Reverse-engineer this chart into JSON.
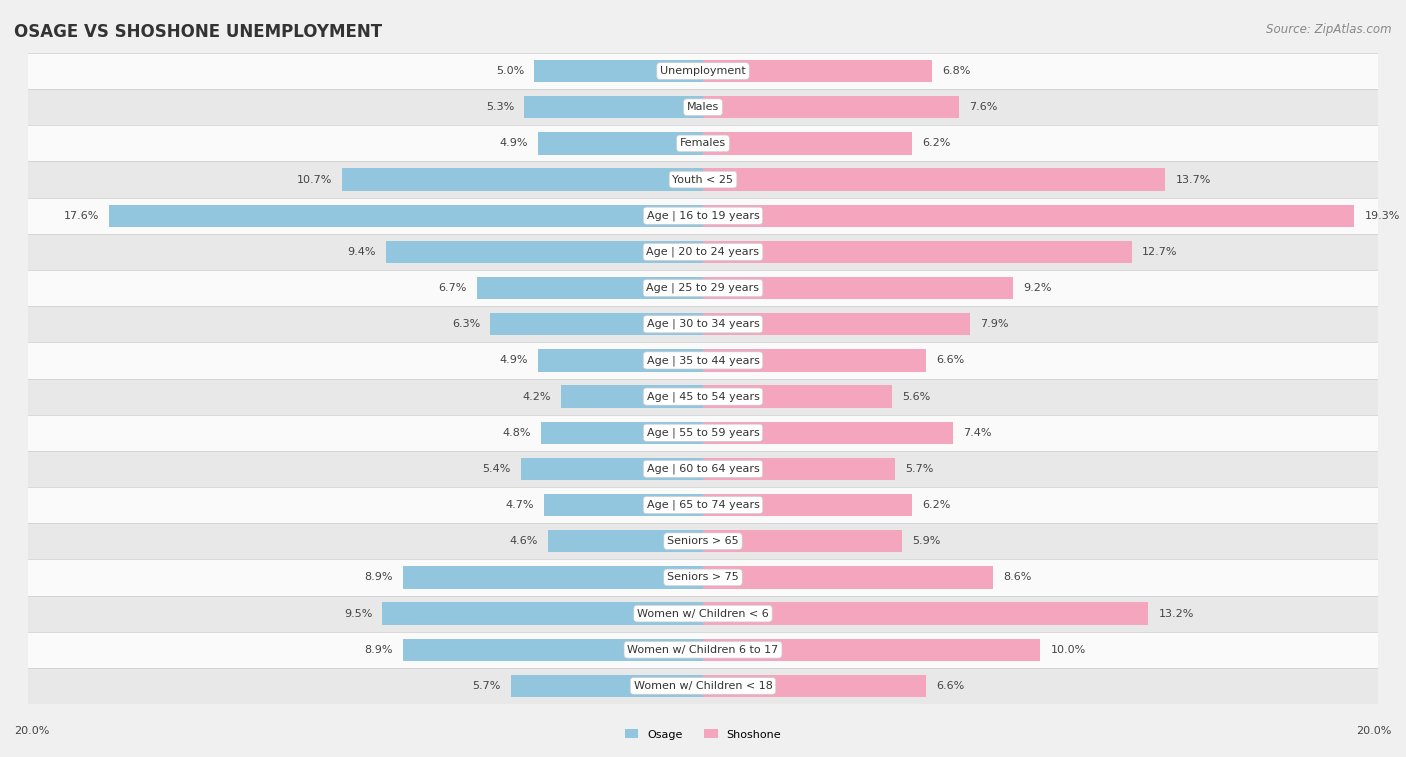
{
  "title": "OSAGE VS SHOSHONE UNEMPLOYMENT",
  "source": "Source: ZipAtlas.com",
  "categories": [
    "Unemployment",
    "Males",
    "Females",
    "Youth < 25",
    "Age | 16 to 19 years",
    "Age | 20 to 24 years",
    "Age | 25 to 29 years",
    "Age | 30 to 34 years",
    "Age | 35 to 44 years",
    "Age | 45 to 54 years",
    "Age | 55 to 59 years",
    "Age | 60 to 64 years",
    "Age | 65 to 74 years",
    "Seniors > 65",
    "Seniors > 75",
    "Women w/ Children < 6",
    "Women w/ Children 6 to 17",
    "Women w/ Children < 18"
  ],
  "osage": [
    5.0,
    5.3,
    4.9,
    10.7,
    17.6,
    9.4,
    6.7,
    6.3,
    4.9,
    4.2,
    4.8,
    5.4,
    4.7,
    4.6,
    8.9,
    9.5,
    8.9,
    5.7
  ],
  "shoshone": [
    6.8,
    7.6,
    6.2,
    13.7,
    19.3,
    12.7,
    9.2,
    7.9,
    6.6,
    5.6,
    7.4,
    5.7,
    6.2,
    5.9,
    8.6,
    13.2,
    10.0,
    6.6
  ],
  "osage_color": "#92c5de",
  "shoshone_color": "#f4a6be",
  "bar_height": 0.62,
  "max_val": 20.0,
  "background_color": "#f0f0f0",
  "row_bg_light": "#fafafa",
  "row_bg_dark": "#e8e8e8",
  "title_fontsize": 12,
  "source_fontsize": 8.5,
  "label_fontsize": 8,
  "value_fontsize": 8,
  "axis_label": "20.0%",
  "legend_label_osage": "Osage",
  "legend_label_shoshone": "Shoshone"
}
